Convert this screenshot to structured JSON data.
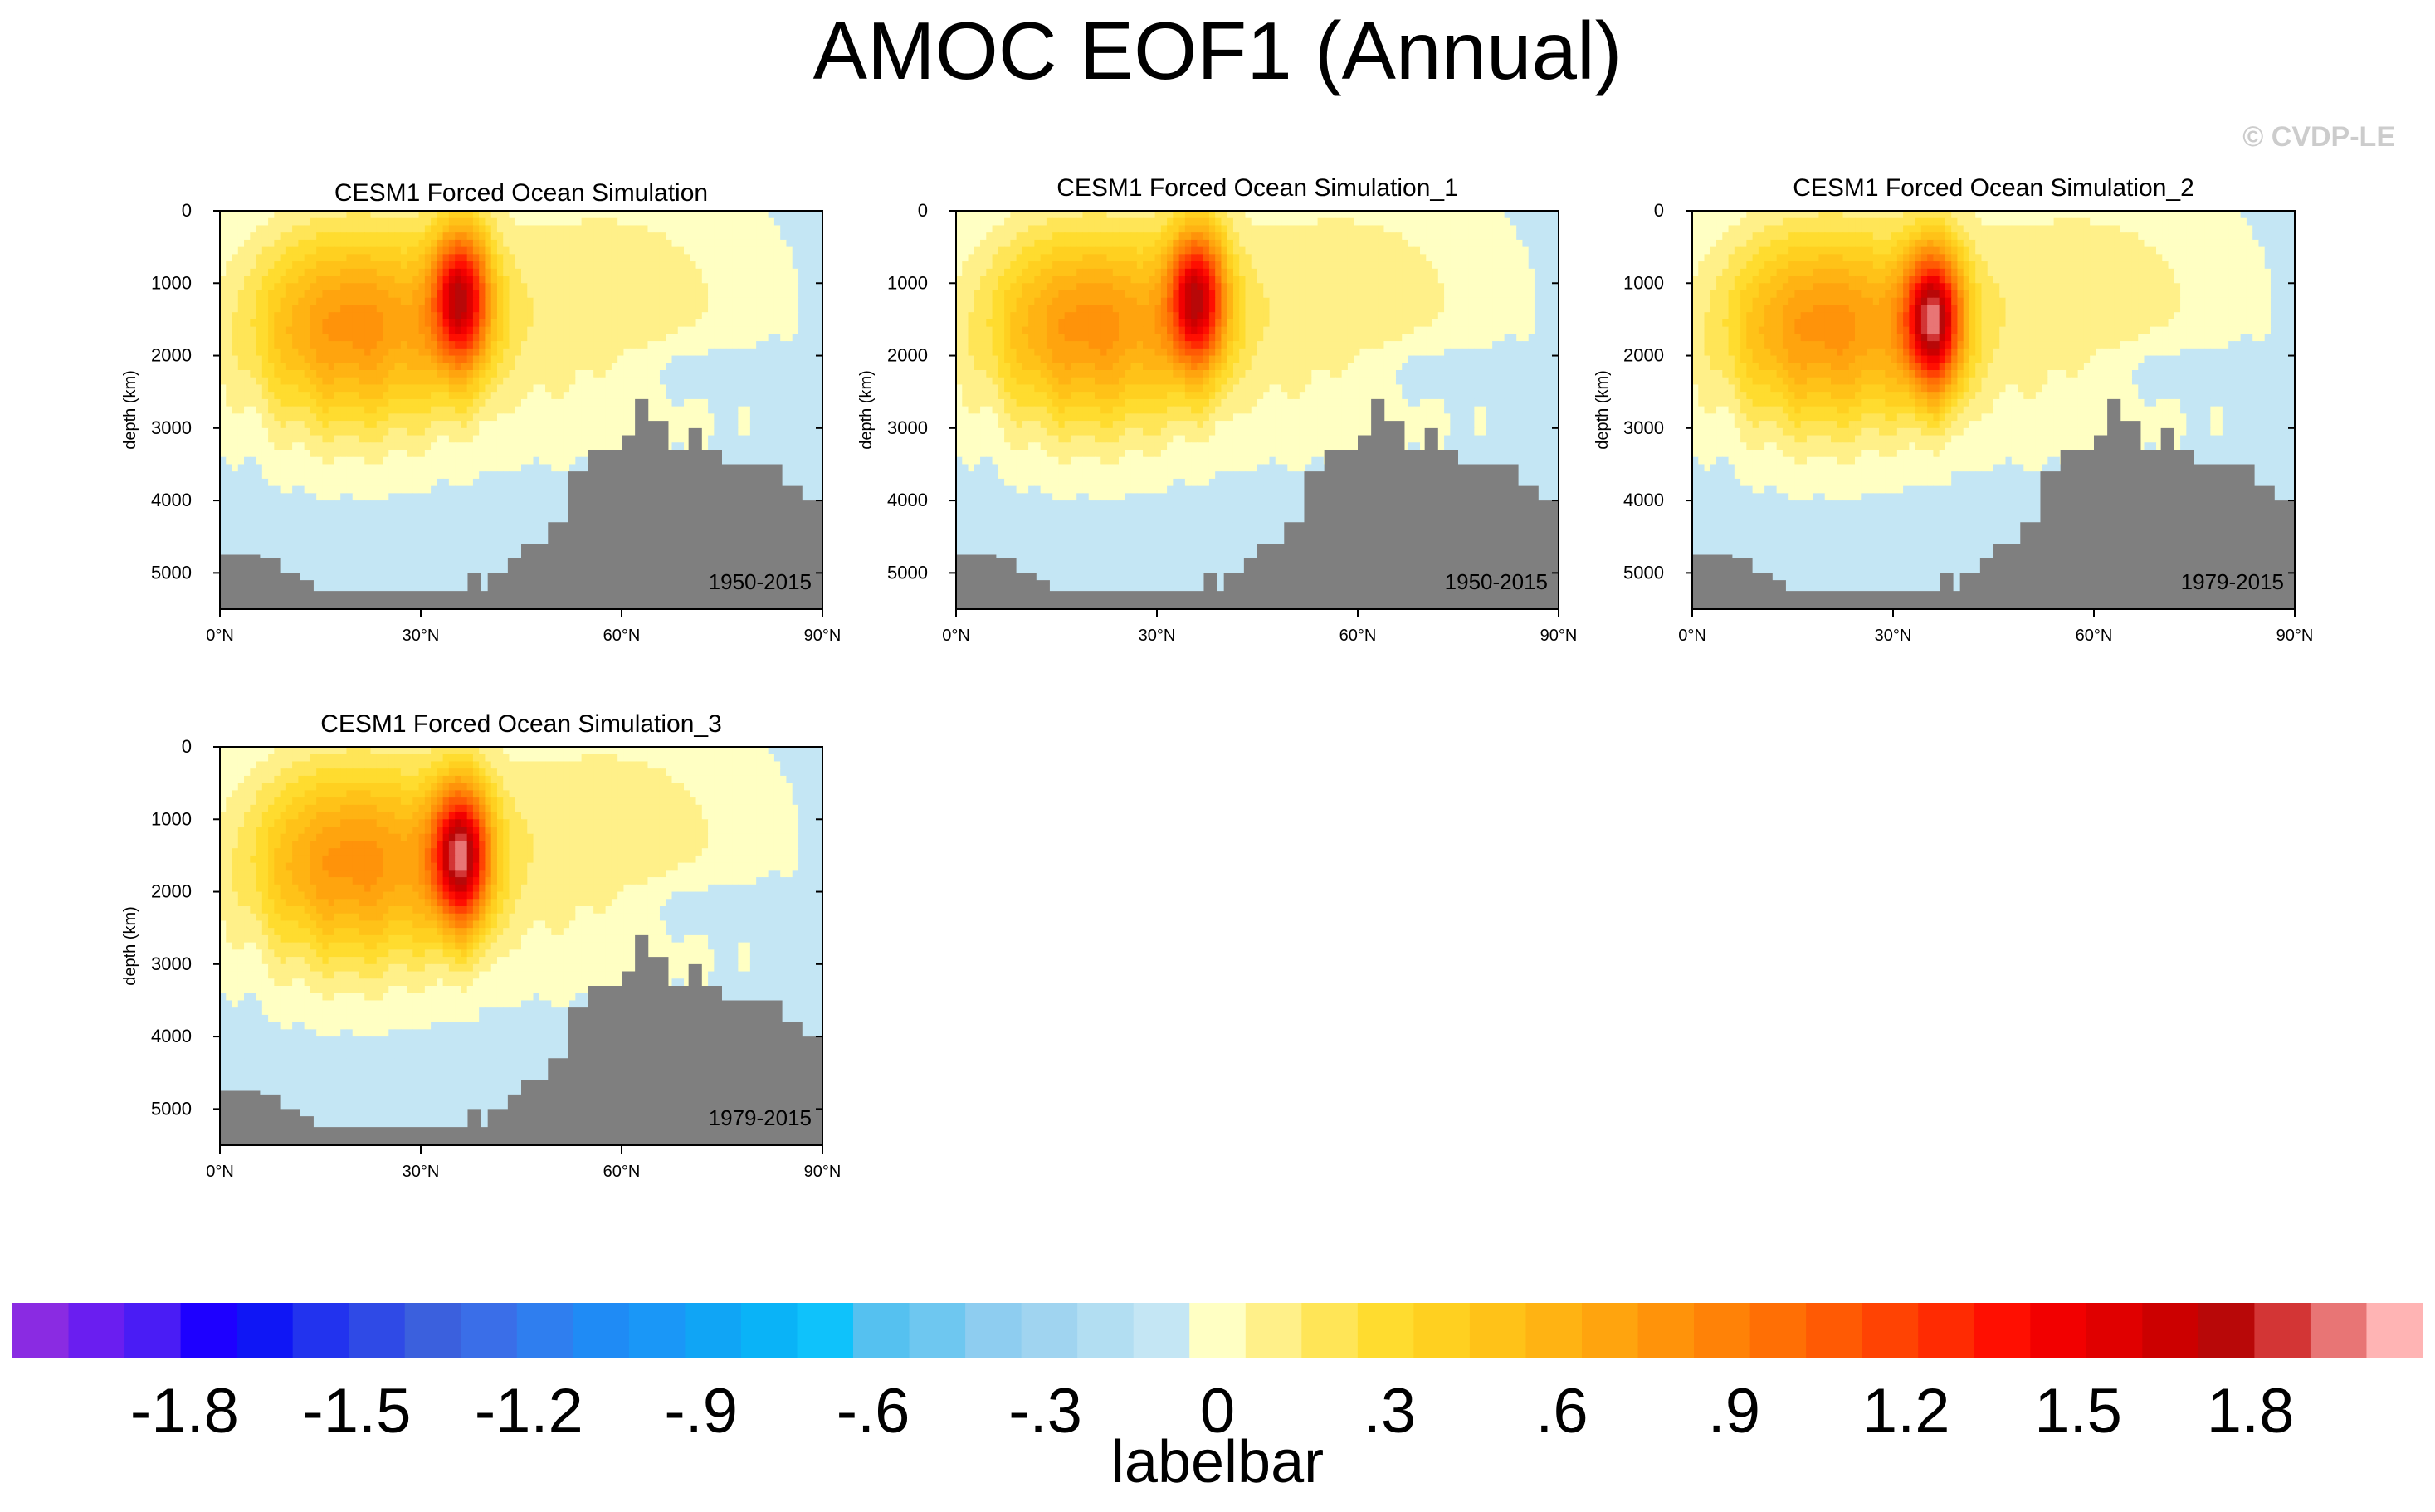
{
  "figure": {
    "title": "AMOC EOF1 (Annual)",
    "watermark": "© CVDP-LE"
  },
  "chart_data": [
    {
      "type": "heatmap",
      "title": "CESM1 Forced Ocean Simulation",
      "period": "1950-2015",
      "ylabel": "depth (km)",
      "y_ticks": [
        "0",
        "1000",
        "2000",
        "3000",
        "4000",
        "5000"
      ],
      "x_ticks": [
        "0°N",
        "30°N",
        "60°N",
        "90°N"
      ],
      "xlim": [
        0,
        90
      ],
      "ylim": [
        5500,
        0
      ],
      "max_value": 1.5,
      "max_location": {
        "lat": 36,
        "depth": 1200
      },
      "bathymetry": [
        [
          0,
          4750
        ],
        [
          2,
          4750
        ],
        [
          6,
          4800
        ],
        [
          9,
          5000
        ],
        [
          12,
          5100
        ],
        [
          14,
          5250
        ],
        [
          35,
          5250
        ],
        [
          37,
          5000
        ],
        [
          39,
          5250
        ],
        [
          40,
          5000
        ],
        [
          43,
          4800
        ],
        [
          45,
          4600
        ],
        [
          49,
          4300
        ],
        [
          52,
          3600
        ],
        [
          55,
          3300
        ],
        [
          60,
          3100
        ],
        [
          62,
          2600
        ],
        [
          64,
          2900
        ],
        [
          67,
          3300
        ],
        [
          70,
          3000
        ],
        [
          72,
          3300
        ],
        [
          75,
          3500
        ],
        [
          82,
          3500
        ],
        [
          84,
          3800
        ],
        [
          87,
          4000
        ],
        [
          90,
          4000
        ]
      ]
    },
    {
      "type": "heatmap",
      "title": "CESM1 Forced Ocean Simulation_1",
      "period": "1950-2015",
      "ylabel": "depth (km)",
      "y_ticks": [
        "0",
        "1000",
        "2000",
        "3000",
        "4000",
        "5000"
      ],
      "x_ticks": [
        "0°N",
        "30°N",
        "60°N",
        "90°N"
      ],
      "xlim": [
        0,
        90
      ],
      "ylim": [
        5500,
        0
      ],
      "max_value": 1.5,
      "max_location": {
        "lat": 36,
        "depth": 1200
      },
      "bathymetry": [
        [
          0,
          4750
        ],
        [
          2,
          4750
        ],
        [
          6,
          4800
        ],
        [
          9,
          5000
        ],
        [
          12,
          5100
        ],
        [
          14,
          5250
        ],
        [
          35,
          5250
        ],
        [
          37,
          5000
        ],
        [
          39,
          5250
        ],
        [
          40,
          5000
        ],
        [
          43,
          4800
        ],
        [
          45,
          4600
        ],
        [
          49,
          4300
        ],
        [
          52,
          3600
        ],
        [
          55,
          3300
        ],
        [
          60,
          3100
        ],
        [
          62,
          2600
        ],
        [
          64,
          2900
        ],
        [
          67,
          3300
        ],
        [
          70,
          3000
        ],
        [
          72,
          3300
        ],
        [
          75,
          3500
        ],
        [
          82,
          3500
        ],
        [
          84,
          3800
        ],
        [
          87,
          4000
        ],
        [
          90,
          4000
        ]
      ]
    },
    {
      "type": "heatmap",
      "title": "CESM1 Forced Ocean Simulation_2",
      "period": "1979-2015",
      "ylabel": "depth (km)",
      "y_ticks": [
        "0",
        "1000",
        "2000",
        "3000",
        "4000",
        "5000"
      ],
      "x_ticks": [
        "0°N",
        "30°N",
        "60°N",
        "90°N"
      ],
      "xlim": [
        0,
        90
      ],
      "ylim": [
        5500,
        0
      ],
      "max_value": 1.7,
      "max_location": {
        "lat": 36,
        "depth": 1500
      },
      "bathymetry": [
        [
          0,
          4750
        ],
        [
          2,
          4750
        ],
        [
          6,
          4800
        ],
        [
          9,
          5000
        ],
        [
          12,
          5100
        ],
        [
          14,
          5250
        ],
        [
          35,
          5250
        ],
        [
          37,
          5000
        ],
        [
          39,
          5250
        ],
        [
          40,
          5000
        ],
        [
          43,
          4800
        ],
        [
          45,
          4600
        ],
        [
          49,
          4300
        ],
        [
          52,
          3600
        ],
        [
          55,
          3300
        ],
        [
          60,
          3100
        ],
        [
          62,
          2600
        ],
        [
          64,
          2900
        ],
        [
          67,
          3300
        ],
        [
          70,
          3000
        ],
        [
          72,
          3300
        ],
        [
          75,
          3500
        ],
        [
          82,
          3500
        ],
        [
          84,
          3800
        ],
        [
          87,
          4000
        ],
        [
          90,
          4000
        ]
      ]
    },
    {
      "type": "heatmap",
      "title": "CESM1 Forced Ocean Simulation_3",
      "period": "1979-2015",
      "ylabel": "depth (km)",
      "y_ticks": [
        "0",
        "1000",
        "2000",
        "3000",
        "4000",
        "5000"
      ],
      "x_ticks": [
        "0°N",
        "30°N",
        "60°N",
        "90°N"
      ],
      "xlim": [
        0,
        90
      ],
      "ylim": [
        5500,
        0
      ],
      "max_value": 1.7,
      "max_location": {
        "lat": 36,
        "depth": 1500
      },
      "bathymetry": [
        [
          0,
          4750
        ],
        [
          2,
          4750
        ],
        [
          6,
          4800
        ],
        [
          9,
          5000
        ],
        [
          12,
          5100
        ],
        [
          14,
          5250
        ],
        [
          35,
          5250
        ],
        [
          37,
          5000
        ],
        [
          39,
          5250
        ],
        [
          40,
          5000
        ],
        [
          43,
          4800
        ],
        [
          45,
          4600
        ],
        [
          49,
          4300
        ],
        [
          52,
          3600
        ],
        [
          55,
          3300
        ],
        [
          60,
          3100
        ],
        [
          62,
          2600
        ],
        [
          64,
          2900
        ],
        [
          67,
          3300
        ],
        [
          70,
          3000
        ],
        [
          72,
          3300
        ],
        [
          75,
          3500
        ],
        [
          82,
          3500
        ],
        [
          84,
          3800
        ],
        [
          87,
          4000
        ],
        [
          90,
          4000
        ]
      ]
    }
  ],
  "colorbar": {
    "title": "labelbar",
    "min": -2.1,
    "max": 2.1,
    "step": 0.1,
    "colors": [
      "#8a2be2",
      "#6a1ef0",
      "#4a1cf5",
      "#1e00ff",
      "#0f16f5",
      "#2233ee",
      "#2f4ae6",
      "#3b60dd",
      "#3a6ee8",
      "#2f7eef",
      "#1f8bf5",
      "#1a97f7",
      "#10a5f5",
      "#0ab3f7",
      "#0fc2fb",
      "#55c1f0",
      "#6ec7f0",
      "#8ecdf0",
      "#a0d4f0",
      "#b2def2",
      "#c4e6f4",
      "#ffffc3",
      "#fff089",
      "#ffe557",
      "#ffdc2f",
      "#ffd020",
      "#ffc218",
      "#ffb313",
      "#ffa40e",
      "#ff930a",
      "#ff8207",
      "#ff6f05",
      "#ff5a04",
      "#ff4303",
      "#ff2b02",
      "#ff0f01",
      "#f20000",
      "#e00000",
      "#cc0000",
      "#b80808",
      "#d33535",
      "#e87575",
      "#ffb4b4"
    ],
    "tick_labels": [
      "-1.8",
      "-1.5",
      "-1.2",
      "-.9",
      "-.6",
      "-.3",
      "0",
      ".3",
      ".6",
      ".9",
      "1.2",
      "1.5",
      "1.8"
    ],
    "tick_values": [
      -1.8,
      -1.5,
      -1.2,
      -0.9,
      -0.6,
      -0.3,
      0,
      0.3,
      0.6,
      0.9,
      1.2,
      1.5,
      1.8
    ]
  },
  "colors": {
    "land": "#7f7f7f",
    "contour": "#3a3a3a",
    "watermark": "#cccccc"
  }
}
